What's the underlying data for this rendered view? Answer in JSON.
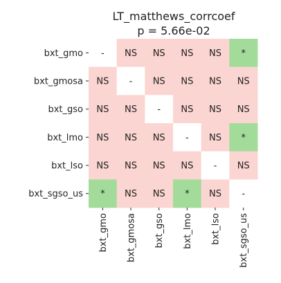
{
  "chart_data": {
    "type": "heatmap",
    "title": "LT_matthews_corrcoef",
    "subtitle": "p = 5.66e-02",
    "row_labels": [
      "bxt_gmo",
      "bxt_gmosa",
      "bxt_gso",
      "bxt_lmo",
      "bxt_lso",
      "bxt_sgso_us"
    ],
    "col_labels": [
      "bxt_gmo",
      "bxt_gmosa",
      "bxt_gso",
      "bxt_lmo",
      "bxt_lso",
      "bxt_sgso_us"
    ],
    "cells": [
      [
        "-",
        "NS",
        "NS",
        "NS",
        "NS",
        "*"
      ],
      [
        "NS",
        "-",
        "NS",
        "NS",
        "NS",
        "NS"
      ],
      [
        "NS",
        "NS",
        "-",
        "NS",
        "NS",
        "NS"
      ],
      [
        "NS",
        "NS",
        "NS",
        "-",
        "NS",
        "*"
      ],
      [
        "NS",
        "NS",
        "NS",
        "NS",
        "-",
        "NS"
      ],
      [
        "*",
        "NS",
        "NS",
        "*",
        "NS",
        "-"
      ]
    ],
    "colors": {
      "NS": "#fbd5d1",
      "*": "#a3dc9a",
      "-": "#ffffff"
    }
  }
}
